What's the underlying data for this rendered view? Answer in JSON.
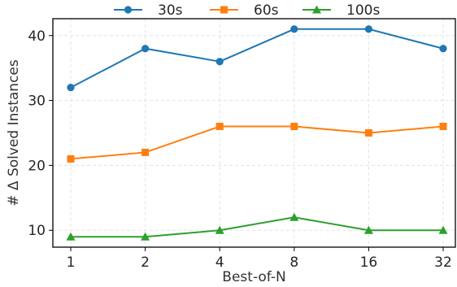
{
  "chart_data": {
    "type": "line",
    "categories": [
      "1",
      "2",
      "4",
      "8",
      "16",
      "32"
    ],
    "series": [
      {
        "name": "30s",
        "color": "#1f77b4",
        "marker": "circle",
        "values": [
          32,
          38,
          36,
          41,
          41,
          38
        ]
      },
      {
        "name": "60s",
        "color": "#ff7f0e",
        "marker": "square",
        "values": [
          21,
          22,
          26,
          26,
          25,
          26
        ]
      },
      {
        "name": "100s",
        "color": "#2ca02c",
        "marker": "triangle",
        "values": [
          9,
          9,
          10,
          12,
          10,
          10
        ]
      }
    ],
    "xlabel": "Best-of-N",
    "ylabel": "# Δ Solved Instances",
    "ylim": [
      7.4,
      42.6
    ],
    "yticks": [
      "10",
      "20",
      "30",
      "40"
    ],
    "grid": true,
    "legend_position": "top-center"
  }
}
